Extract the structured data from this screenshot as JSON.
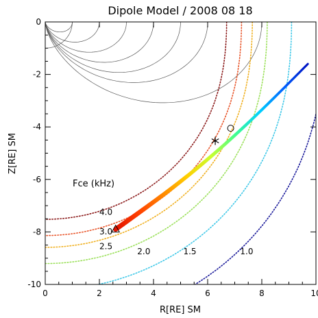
{
  "chart_data": {
    "type": "scatter",
    "title": "Dipole Model / 2008 08 18",
    "xlabel": "R[RE]  SM",
    "ylabel": "Z[RE]  SM",
    "xlim": [
      0,
      10
    ],
    "ylim": [
      -10,
      0
    ],
    "xticks": [
      "0",
      "2",
      "4",
      "6",
      "8",
      "10"
    ],
    "yticks": [
      "0",
      "-2",
      "-4",
      "-6",
      "-8",
      "-10"
    ],
    "field_lines_L": [
      1,
      2,
      3,
      4,
      5,
      6,
      8
    ],
    "fce_legend_title": "Fce (kHz)",
    "fce_contours": [
      {
        "label": "4.0",
        "r_equator": 6.7,
        "color": "#8b1a1a",
        "label_x": 2.0,
        "label_y": -7.35
      },
      {
        "label": "3.0",
        "r_equator": 7.25,
        "color": "#e8552a",
        "label_x": 2.0,
        "label_y": -8.1
      },
      {
        "label": "2.5",
        "r_equator": 7.65,
        "color": "#f0b020",
        "label_x": 2.0,
        "label_y": -8.65
      },
      {
        "label": "2.0",
        "r_equator": 8.2,
        "color": "#9be05a",
        "label_x": 3.4,
        "label_y": -8.85
      },
      {
        "label": "1.5",
        "r_equator": 9.1,
        "color": "#3ec8e8",
        "label_x": 5.1,
        "label_y": -8.85
      },
      {
        "label": "1.0",
        "r_equator": 10.35,
        "color": "#1a1a9a",
        "label_x": 7.2,
        "label_y": -8.85
      }
    ],
    "trajectory": {
      "start": [
        2.6,
        -7.9
      ],
      "end": [
        9.7,
        -1.6
      ],
      "colors": [
        "#e01000",
        "#ff4000",
        "#ff8800",
        "#ffd000",
        "#c8ff30",
        "#40ff90",
        "#00d0ff",
        "#0060ff",
        "#0010c0"
      ]
    },
    "markers": [
      {
        "symbol": "triangle",
        "r": 2.6,
        "z": -7.9
      },
      {
        "symbol": "asterisk",
        "r": 6.28,
        "z": -4.53
      },
      {
        "symbol": "circle",
        "r": 6.85,
        "z": -4.05
      }
    ]
  }
}
